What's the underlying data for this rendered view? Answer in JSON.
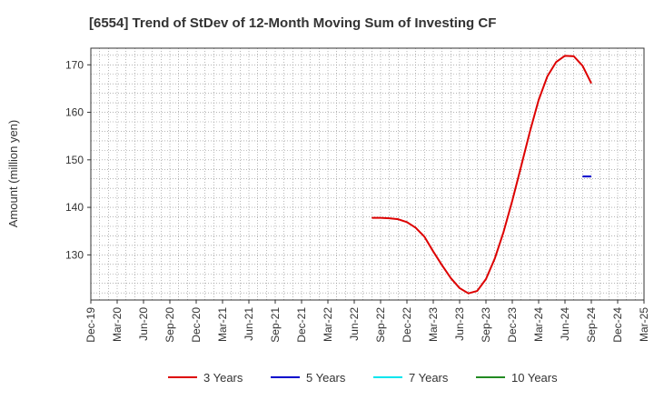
{
  "chart_data": {
    "type": "line",
    "title": "[6554]  Trend of StDev of 12-Month Moving Sum of Investing CF",
    "xlabel": "",
    "ylabel": "Amount (million yen)",
    "ylim": [
      120.5,
      173.5
    ],
    "yticks": [
      130,
      140,
      150,
      160,
      170
    ],
    "x_tick_labels": [
      "Dec-19",
      "Mar-20",
      "Jun-20",
      "Sep-20",
      "Dec-20",
      "Mar-21",
      "Jun-21",
      "Sep-21",
      "Dec-21",
      "Mar-22",
      "Jun-22",
      "Sep-22",
      "Dec-22",
      "Mar-23",
      "Jun-23",
      "Sep-23",
      "Dec-23",
      "Mar-24",
      "Jun-24",
      "Sep-24",
      "Dec-24",
      "Mar-25"
    ],
    "x_start": "2019-12",
    "x_end": "2025-03",
    "grid": true,
    "legend_position": "bottom",
    "series": [
      {
        "name": "3 Years",
        "color": "#dd0000",
        "x": [
          "2022-08",
          "2022-09",
          "2022-10",
          "2022-11",
          "2022-12",
          "2023-01",
          "2023-02",
          "2023-03",
          "2023-04",
          "2023-05",
          "2023-06",
          "2023-07",
          "2023-08",
          "2023-09",
          "2023-10",
          "2023-11",
          "2023-12",
          "2024-01",
          "2024-02",
          "2024-03",
          "2024-04",
          "2024-05",
          "2024-06",
          "2024-07",
          "2024-08",
          "2024-09"
        ],
        "values": [
          137.8,
          137.8,
          137.7,
          137.5,
          136.9,
          135.7,
          133.8,
          130.7,
          127.8,
          125.1,
          123.0,
          121.9,
          122.4,
          124.9,
          129.2,
          134.8,
          141.4,
          148.6,
          155.9,
          162.6,
          167.6,
          170.6,
          171.9,
          171.8,
          169.8,
          166.1
        ]
      },
      {
        "name": "5 Years",
        "color": "#0000cc",
        "x": [
          "2024-08",
          "2024-09"
        ],
        "values": [
          146.5,
          146.5
        ]
      },
      {
        "name": "7 Years",
        "color": "#00e5ee",
        "x": [],
        "values": []
      },
      {
        "name": "10 Years",
        "color": "#228b22",
        "x": [],
        "values": []
      }
    ]
  }
}
